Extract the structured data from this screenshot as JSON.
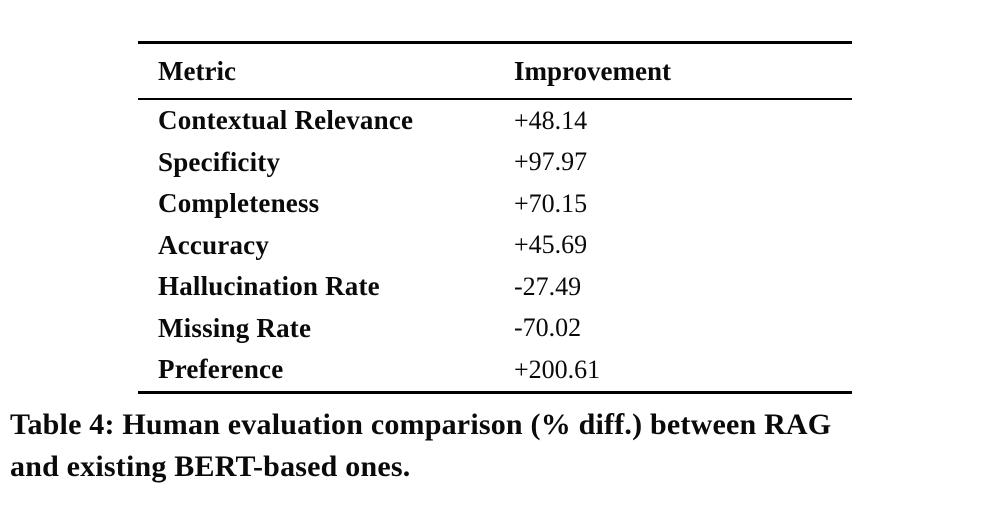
{
  "chart_data": {
    "type": "table",
    "title": "Table 4: Human evaluation comparison (% diff.) between RAG and existing BERT-based ones.",
    "columns": [
      "Metric",
      "Improvement"
    ],
    "rows": [
      [
        "Contextual Relevance",
        "+48.14"
      ],
      [
        "Specificity",
        "+97.97"
      ],
      [
        "Completeness",
        "+70.15"
      ],
      [
        "Accuracy",
        "+45.69"
      ],
      [
        "Hallucination Rate",
        "-27.49"
      ],
      [
        "Missing Rate",
        "-70.02"
      ],
      [
        "Preference",
        "+200.61"
      ]
    ]
  },
  "caption": {
    "full_text": "Table 4: Human evaluation comparison (% diff.) between RAG and existing BERT-based ones.",
    "lines": [
      "Table 4: Human evaluation comparison (% diff.) between RAG",
      "and existing BERT-based ones."
    ]
  },
  "colors": {
    "background": "#ffffff",
    "text": "#0a0a0a",
    "rule": "#000000"
  }
}
